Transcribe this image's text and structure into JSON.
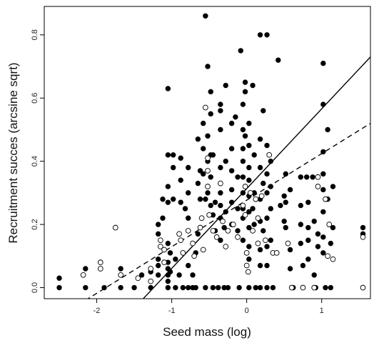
{
  "chart_data": {
    "type": "scatter",
    "title": "",
    "xlabel": "Seed mass (log)",
    "ylabel": "Recruitment succes (arcsine sqrt)",
    "xlim": [
      -2.7,
      1.65
    ],
    "ylim": [
      -0.035,
      0.89
    ],
    "x_ticks": [
      -2,
      -1,
      0,
      1
    ],
    "x_tick_labels": [
      "-2",
      "-1",
      "0",
      "1"
    ],
    "y_ticks": [
      0.0,
      0.2,
      0.4,
      0.6,
      0.8
    ],
    "y_tick_labels": [
      "0.0",
      "0.2",
      "0.4",
      "0.6",
      "0.8"
    ],
    "grid": false,
    "legend": "none",
    "series": [
      {
        "marker": "filled-circle",
        "color": "#000000",
        "points": [
          [
            -2.5,
            0.03
          ],
          [
            -2.5,
            0.0
          ],
          [
            -2.15,
            0.06
          ],
          [
            -2.15,
            0.0
          ],
          [
            -1.9,
            0.0
          ],
          [
            -1.68,
            0.06
          ],
          [
            -1.68,
            0.0
          ],
          [
            -1.5,
            0.0
          ],
          [
            -1.4,
            0.04
          ],
          [
            -1.28,
            0.05
          ],
          [
            -1.28,
            0.0
          ],
          [
            -1.18,
            0.2
          ],
          [
            -1.18,
            0.17
          ],
          [
            -1.18,
            0.09
          ],
          [
            -1.18,
            0.07
          ],
          [
            -1.18,
            0.04
          ],
          [
            -1.12,
            0.28
          ],
          [
            -1.12,
            0.22
          ],
          [
            -1.05,
            0.63
          ],
          [
            -1.05,
            0.42
          ],
          [
            -1.05,
            0.32
          ],
          [
            -1.05,
            0.27
          ],
          [
            -1.05,
            0.14
          ],
          [
            -1.05,
            0.08
          ],
          [
            -1.05,
            0.06
          ],
          [
            -1.05,
            0.04
          ],
          [
            -1.05,
            0.02
          ],
          [
            -1.05,
            0.0
          ],
          [
            -1.02,
            0.11
          ],
          [
            -1.02,
            0.05
          ],
          [
            -0.98,
            0.42
          ],
          [
            -0.98,
            0.38
          ],
          [
            -0.98,
            0.28
          ],
          [
            -0.95,
            0.09
          ],
          [
            -0.95,
            0.0
          ],
          [
            -0.9,
            0.04
          ],
          [
            -0.88,
            0.41
          ],
          [
            -0.88,
            0.34
          ],
          [
            -0.88,
            0.27
          ],
          [
            -0.85,
            0.0
          ],
          [
            -0.82,
            0.25
          ],
          [
            -0.78,
            0.38
          ],
          [
            -0.78,
            0.3
          ],
          [
            -0.78,
            0.22
          ],
          [
            -0.78,
            0.07
          ],
          [
            -0.78,
            0.0
          ],
          [
            -0.72,
            0.04
          ],
          [
            -0.72,
            0.0
          ],
          [
            -0.68,
            0.11
          ],
          [
            -0.68,
            0.0
          ],
          [
            -0.65,
            0.47
          ],
          [
            -0.65,
            0.33
          ],
          [
            -0.65,
            0.17
          ],
          [
            -0.62,
            0.37
          ],
          [
            -0.62,
            0.28
          ],
          [
            -0.58,
            0.52
          ],
          [
            -0.58,
            0.44
          ],
          [
            -0.58,
            0.36
          ],
          [
            -0.55,
            0.86
          ],
          [
            -0.55,
            0.28
          ],
          [
            -0.55,
            0.0
          ],
          [
            -0.52,
            0.7
          ],
          [
            -0.52,
            0.48
          ],
          [
            -0.52,
            0.4
          ],
          [
            -0.52,
            0.3
          ],
          [
            -0.48,
            0.62
          ],
          [
            -0.48,
            0.55
          ],
          [
            -0.48,
            0.42
          ],
          [
            -0.48,
            0.35
          ],
          [
            -0.48,
            0.26
          ],
          [
            -0.45,
            0.42
          ],
          [
            -0.45,
            0.23
          ],
          [
            -0.45,
            0.0
          ],
          [
            -0.42,
            0.27
          ],
          [
            -0.42,
            0.18
          ],
          [
            -0.38,
            0.0
          ],
          [
            -0.35,
            0.58
          ],
          [
            -0.35,
            0.56
          ],
          [
            -0.35,
            0.5
          ],
          [
            -0.35,
            0.38
          ],
          [
            -0.35,
            0.3
          ],
          [
            -0.35,
            0.26
          ],
          [
            -0.35,
            0.22
          ],
          [
            -0.35,
            0.15
          ],
          [
            -0.3,
            0.19
          ],
          [
            -0.3,
            0.0
          ],
          [
            -0.28,
            0.64
          ],
          [
            -0.28,
            0.4
          ],
          [
            -0.28,
            0.24
          ],
          [
            -0.25,
            0.0
          ],
          [
            -0.2,
            0.52
          ],
          [
            -0.2,
            0.44
          ],
          [
            -0.2,
            0.37
          ],
          [
            -0.2,
            0.31
          ],
          [
            -0.2,
            0.27
          ],
          [
            -0.2,
            0.2
          ],
          [
            -0.15,
            0.54
          ],
          [
            -0.12,
            0.35
          ],
          [
            -0.12,
            0.25
          ],
          [
            -0.12,
            0.18
          ],
          [
            -0.1,
            0.0
          ],
          [
            -0.08,
            0.75
          ],
          [
            -0.05,
            0.58
          ],
          [
            -0.05,
            0.5
          ],
          [
            -0.05,
            0.44
          ],
          [
            -0.05,
            0.4
          ],
          [
            -0.05,
            0.35
          ],
          [
            -0.05,
            0.3
          ],
          [
            -0.05,
            0.25
          ],
          [
            -0.05,
            0.22
          ],
          [
            -0.05,
            0.15
          ],
          [
            -0.02,
            0.65
          ],
          [
            -0.02,
            0.62
          ],
          [
            -0.02,
            0.48
          ],
          [
            0.03,
            0.52
          ],
          [
            0.03,
            0.45
          ],
          [
            0.03,
            0.38
          ],
          [
            0.03,
            0.34
          ],
          [
            0.03,
            0.29
          ],
          [
            0.03,
            0.24
          ],
          [
            0.03,
            0.19
          ],
          [
            0.03,
            0.13
          ],
          [
            0.03,
            0.09
          ],
          [
            0.03,
            0.0
          ],
          [
            0.08,
            0.64
          ],
          [
            0.08,
            0.25
          ],
          [
            0.1,
            0.42
          ],
          [
            0.1,
            0.3
          ],
          [
            0.1,
            0.2
          ],
          [
            0.12,
            0.0
          ],
          [
            0.18,
            0.8
          ],
          [
            0.18,
            0.47
          ],
          [
            0.18,
            0.38
          ],
          [
            0.18,
            0.28
          ],
          [
            0.18,
            0.21
          ],
          [
            0.18,
            0.12
          ],
          [
            0.18,
            0.07
          ],
          [
            0.18,
            0.0
          ],
          [
            0.22,
            0.56
          ],
          [
            0.22,
            0.33
          ],
          [
            0.22,
            0.18
          ],
          [
            0.27,
            0.8
          ],
          [
            0.27,
            0.45
          ],
          [
            0.27,
            0.36
          ],
          [
            0.27,
            0.3
          ],
          [
            0.27,
            0.22
          ],
          [
            0.27,
            0.13
          ],
          [
            0.27,
            0.07
          ],
          [
            0.27,
            0.0
          ],
          [
            0.32,
            0.4
          ],
          [
            0.32,
            0.32
          ],
          [
            0.32,
            0.25
          ],
          [
            0.32,
            0.15
          ],
          [
            0.35,
            0.0
          ],
          [
            0.42,
            0.72
          ],
          [
            0.45,
            0.26
          ],
          [
            0.5,
            0.29
          ],
          [
            0.5,
            0.21
          ],
          [
            0.52,
            0.36
          ],
          [
            0.52,
            0.27
          ],
          [
            0.52,
            0.19
          ],
          [
            0.58,
            0.31
          ],
          [
            0.58,
            0.12
          ],
          [
            0.58,
            0.06
          ],
          [
            0.62,
            0.0
          ],
          [
            0.72,
            0.35
          ],
          [
            0.72,
            0.26
          ],
          [
            0.72,
            0.2
          ],
          [
            0.72,
            0.14
          ],
          [
            0.75,
            0.07
          ],
          [
            0.8,
            0.35
          ],
          [
            0.82,
            0.27
          ],
          [
            0.82,
            0.19
          ],
          [
            0.82,
            0.15
          ],
          [
            0.82,
            0.09
          ],
          [
            0.88,
            0.35
          ],
          [
            0.9,
            0.21
          ],
          [
            0.9,
            0.04
          ],
          [
            0.92,
            0.0
          ],
          [
            0.95,
            0.17
          ],
          [
            0.95,
            0.13
          ],
          [
            1.02,
            0.71
          ],
          [
            1.02,
            0.58
          ],
          [
            1.02,
            0.43
          ],
          [
            1.02,
            0.36
          ],
          [
            1.02,
            0.31
          ],
          [
            1.02,
            0.24
          ],
          [
            1.02,
            0.16
          ],
          [
            1.02,
            0.11
          ],
          [
            1.05,
            0.0
          ],
          [
            1.08,
            0.5
          ],
          [
            1.08,
            0.28
          ],
          [
            1.12,
            0.14
          ],
          [
            1.12,
            0.0
          ],
          [
            1.15,
            0.32
          ],
          [
            1.15,
            0.19
          ],
          [
            1.55,
            0.19
          ],
          [
            1.55,
            0.17
          ]
        ]
      },
      {
        "marker": "open-circle",
        "color": "#000000",
        "points": [
          [
            -2.18,
            0.04
          ],
          [
            -1.95,
            0.08
          ],
          [
            -1.95,
            0.06
          ],
          [
            -1.75,
            0.19
          ],
          [
            -1.68,
            0.04
          ],
          [
            -1.45,
            0.03
          ],
          [
            -1.28,
            0.06
          ],
          [
            -1.28,
            0.02
          ],
          [
            -1.15,
            0.15
          ],
          [
            -1.15,
            0.13
          ],
          [
            -1.1,
            0.12
          ],
          [
            -1.1,
            0.08
          ],
          [
            -0.9,
            0.17
          ],
          [
            -0.88,
            0.15
          ],
          [
            -0.85,
            0.11
          ],
          [
            -0.78,
            0.18
          ],
          [
            -0.72,
            0.14
          ],
          [
            -0.7,
            0.1
          ],
          [
            -0.62,
            0.19
          ],
          [
            -0.6,
            0.22
          ],
          [
            -0.58,
            0.12
          ],
          [
            -0.55,
            0.57
          ],
          [
            -0.52,
            0.41
          ],
          [
            -0.52,
            0.37
          ],
          [
            -0.52,
            0.32
          ],
          [
            -0.5,
            0.23
          ],
          [
            -0.45,
            0.18
          ],
          [
            -0.4,
            0.16
          ],
          [
            -0.35,
            0.33
          ],
          [
            -0.32,
            0.21
          ],
          [
            -0.28,
            0.13
          ],
          [
            -0.25,
            0.18
          ],
          [
            -0.18,
            0.2
          ],
          [
            -0.12,
            0.16
          ],
          [
            -0.05,
            0.26
          ],
          [
            -0.02,
            0.32
          ],
          [
            -0.02,
            0.23
          ],
          [
            0.0,
            0.11
          ],
          [
            0.0,
            0.07
          ],
          [
            0.02,
            0.05
          ],
          [
            0.05,
            0.3
          ],
          [
            0.08,
            0.18
          ],
          [
            0.12,
            0.28
          ],
          [
            0.15,
            0.22
          ],
          [
            0.15,
            0.14
          ],
          [
            0.2,
            0.29
          ],
          [
            0.25,
            0.15
          ],
          [
            0.3,
            0.42
          ],
          [
            0.35,
            0.11
          ],
          [
            0.4,
            0.11
          ],
          [
            0.55,
            0.14
          ],
          [
            0.6,
            0.0
          ],
          [
            0.75,
            0.0
          ],
          [
            0.9,
            0.0
          ],
          [
            0.95,
            0.35
          ],
          [
            0.95,
            0.32
          ],
          [
            1.05,
            0.28
          ],
          [
            1.08,
            0.1
          ],
          [
            1.1,
            0.2
          ],
          [
            1.15,
            0.09
          ],
          [
            1.55,
            0.16
          ],
          [
            1.55,
            0.0
          ]
        ]
      }
    ],
    "fit_lines": [
      {
        "style": "solid",
        "color": "#000000",
        "x": [
          -1.4,
          1.65
        ],
        "y": [
          -0.04,
          0.73
        ]
      },
      {
        "style": "dashed",
        "color": "#000000",
        "x": [
          -2.15,
          1.65
        ],
        "y": [
          -0.04,
          0.52
        ]
      }
    ]
  }
}
